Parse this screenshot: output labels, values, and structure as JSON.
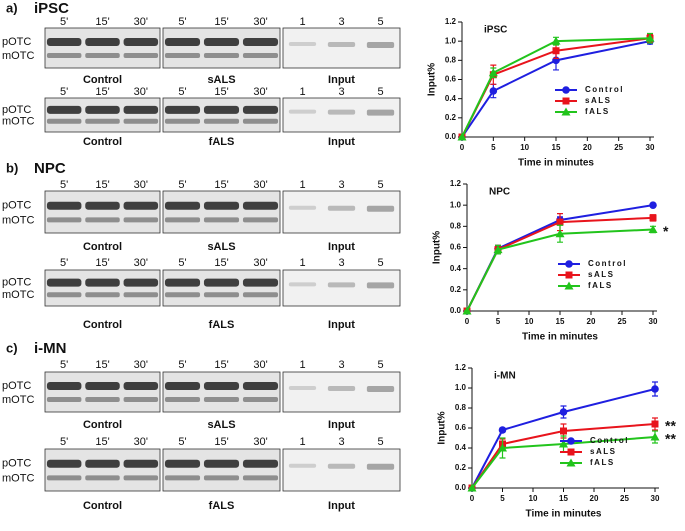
{
  "panels": [
    {
      "label": "a)",
      "title": "iPSC",
      "rows": [
        {
          "times": [
            "5'",
            "15'",
            "30'",
            "5'",
            "15'",
            "30'"
          ],
          "input_lanes": [
            "1",
            "3",
            "5"
          ],
          "bands": [
            "pOTC",
            "mOTC"
          ],
          "groups": [
            "Control",
            "sALS",
            "Input"
          ]
        },
        {
          "times": [
            "5'",
            "15'",
            "30'",
            "5'",
            "15'",
            "30'"
          ],
          "input_lanes": [
            "1",
            "3",
            "5"
          ],
          "bands": [
            "pOTC",
            "mOTC"
          ],
          "groups": [
            "Control",
            "fALS",
            "Input"
          ]
        }
      ]
    },
    {
      "label": "b)",
      "title": "NPC",
      "rows": [
        {
          "times": [
            "5'",
            "15'",
            "30'",
            "5'",
            "15'",
            "30'"
          ],
          "input_lanes": [
            "1",
            "3",
            "5"
          ],
          "bands": [
            "pOTC",
            "mOTC"
          ],
          "groups": [
            "Control",
            "sALS",
            "Input"
          ]
        },
        {
          "times": [
            "5'",
            "15'",
            "30'",
            "5'",
            "15'",
            "30'"
          ],
          "input_lanes": [
            "1",
            "3",
            "5"
          ],
          "bands": [
            "pOTC",
            "mOTC"
          ],
          "groups": [
            "Control",
            "fALS",
            "Input"
          ]
        }
      ]
    },
    {
      "label": "c)",
      "title": "i-MN",
      "rows": [
        {
          "times": [
            "5'",
            "15'",
            "30'",
            "5'",
            "15'",
            "30'"
          ],
          "input_lanes": [
            "1",
            "3",
            "5"
          ],
          "bands": [
            "pOTC",
            "mOTC"
          ],
          "groups": [
            "Control",
            "sALS",
            "Input"
          ]
        },
        {
          "times": [
            "5'",
            "15'",
            "30'",
            "5'",
            "15'",
            "30'"
          ],
          "input_lanes": [
            "1",
            "3",
            "5"
          ],
          "bands": [
            "pOTC",
            "mOTC"
          ],
          "groups": [
            "Control",
            "fALS",
            "Input"
          ]
        }
      ]
    }
  ],
  "chart_data": [
    {
      "type": "line",
      "title": "iPSC",
      "x_label": "Time in minutes",
      "y_label": "Input%",
      "x": [
        0,
        5,
        15,
        30
      ],
      "xlim": [
        0,
        30
      ],
      "xticks": [
        0,
        5,
        10,
        15,
        20,
        25,
        30
      ],
      "ylim": [
        0,
        1.2
      ],
      "yticks": [
        {
          "value": 0,
          "label": "0.0"
        },
        0.2,
        0.4,
        0.6,
        0.8,
        {
          "value": 1,
          "label": "1.0"
        },
        1.2
      ],
      "legend": "lower right",
      "annotations": [],
      "series": [
        {
          "name": "Control",
          "color": "#1f1fe0",
          "marker": "circle",
          "values": [
            0,
            0.48,
            0.8,
            1.0
          ],
          "errors": [
            0,
            0.07,
            0.1,
            0.03
          ]
        },
        {
          "name": "sALS",
          "color": "#e8141c",
          "marker": "square",
          "values": [
            0,
            0.65,
            0.9,
            1.03
          ],
          "errors": [
            0,
            0.1,
            0.08,
            0.04
          ]
        },
        {
          "name": "fALS",
          "color": "#22c41c",
          "marker": "triangle",
          "values": [
            0,
            0.67,
            1.0,
            1.03
          ],
          "errors": [
            0,
            0.05,
            0.04,
            0.05
          ]
        }
      ]
    },
    {
      "type": "line",
      "title": "NPC",
      "x_label": "Time in minutes",
      "y_label": "Input%",
      "x": [
        0,
        5,
        15,
        30
      ],
      "xlim": [
        0,
        30
      ],
      "xticks": [
        0,
        5,
        10,
        15,
        20,
        25,
        30
      ],
      "ylim": [
        0,
        1.2
      ],
      "yticks": [
        {
          "value": 0,
          "label": "0.0"
        },
        0.2,
        0.4,
        0.6,
        0.8,
        {
          "value": 1,
          "label": "1.0"
        },
        1.2
      ],
      "legend": "lower right",
      "annotations": [
        "*"
      ],
      "series": [
        {
          "name": "Control",
          "color": "#1f1fe0",
          "marker": "circle",
          "values": [
            0,
            0.59,
            0.86,
            1.0
          ],
          "errors": [
            0,
            0.03,
            0.03,
            0.01
          ]
        },
        {
          "name": "sALS",
          "color": "#e8141c",
          "marker": "square",
          "values": [
            0,
            0.58,
            0.84,
            0.88
          ],
          "errors": [
            0,
            0.04,
            0.08,
            0.03
          ]
        },
        {
          "name": "fALS",
          "color": "#22c41c",
          "marker": "triangle",
          "values": [
            0,
            0.58,
            0.73,
            0.77
          ],
          "errors": [
            0,
            0.04,
            0.08,
            0.03
          ]
        }
      ]
    },
    {
      "type": "line",
      "title": "i-MN",
      "x_label": "Time in minutes",
      "y_label": "Input%",
      "x": [
        0,
        5,
        15,
        30
      ],
      "xlim": [
        0,
        30
      ],
      "xticks": [
        0,
        5,
        10,
        15,
        20,
        25,
        30
      ],
      "ylim": [
        0,
        1.2
      ],
      "yticks": [
        {
          "value": 0,
          "label": "0.0"
        },
        0.2,
        0.4,
        0.6,
        0.8,
        {
          "value": 1,
          "label": "1.0"
        },
        1.2
      ],
      "legend": "lower right",
      "annotations": [
        "**",
        "**"
      ],
      "series": [
        {
          "name": "Control",
          "color": "#1f1fe0",
          "marker": "circle",
          "values": [
            0,
            0.58,
            0.76,
            0.99
          ],
          "errors": [
            0,
            0.02,
            0.06,
            0.07
          ]
        },
        {
          "name": "sALS",
          "color": "#e8141c",
          "marker": "square",
          "values": [
            0,
            0.44,
            0.57,
            0.64
          ],
          "errors": [
            0,
            0.05,
            0.07,
            0.06
          ]
        },
        {
          "name": "fALS",
          "color": "#22c41c",
          "marker": "triangle",
          "values": [
            0,
            0.4,
            0.44,
            0.51
          ],
          "errors": [
            0,
            0.1,
            0.08,
            0.06
          ]
        }
      ]
    }
  ]
}
